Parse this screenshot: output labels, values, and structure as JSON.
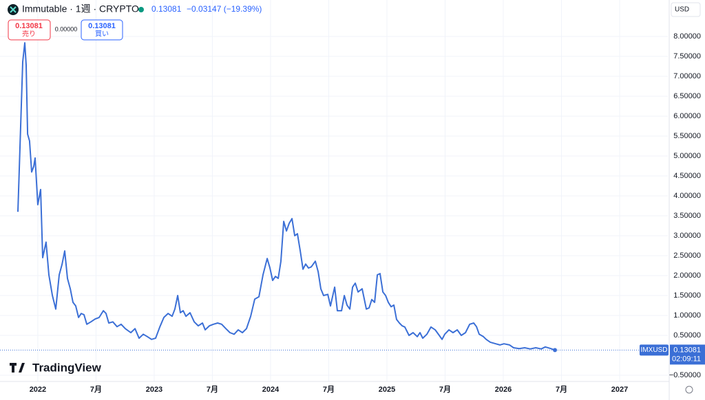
{
  "chart_data": {
    "type": "line",
    "title": "Immutable · 1週 · CRYPTO",
    "last_price": "0.13081",
    "change": "−0.03147 (−19.39%)",
    "sell_price": "0.13081",
    "sell_label": "売り",
    "spread": "0.00000",
    "buy_price": "0.13081",
    "buy_label": "買い",
    "currency": "USD",
    "symbol": "IMXUSD",
    "countdown": "02:09:11",
    "brand": "TradingView",
    "grid": true,
    "series": [
      {
        "name": "IMXUSD",
        "color": "#3b6fd6",
        "x": [
          2021.829,
          2021.87,
          2021.888,
          2021.9,
          2021.912,
          2021.929,
          2021.947,
          2021.965,
          2021.977,
          2022.0,
          2022.024,
          2022.042,
          2022.071,
          2022.095,
          2022.125,
          2022.154,
          2022.184,
          2022.208,
          2022.231,
          2022.255,
          2022.279,
          2022.302,
          2022.326,
          2022.35,
          2022.373,
          2022.397,
          2022.421,
          2022.456,
          2022.492,
          2022.527,
          2022.563,
          2022.586,
          2022.61,
          2022.645,
          2022.681,
          2022.716,
          2022.752,
          2022.799,
          2022.835,
          2022.87,
          2022.906,
          2022.941,
          2022.977,
          2023.012,
          2023.048,
          2023.083,
          2023.119,
          2023.154,
          2023.178,
          2023.202,
          2023.225,
          2023.249,
          2023.273,
          2023.308,
          2023.344,
          2023.379,
          2023.415,
          2023.438,
          2023.474,
          2023.509,
          2023.545,
          2023.58,
          2023.616,
          2023.651,
          2023.687,
          2023.722,
          2023.758,
          2023.793,
          2023.829,
          2023.864,
          2023.9,
          2023.935,
          2023.971,
          2023.995,
          2024.018,
          2024.042,
          2024.066,
          2024.089,
          2024.113,
          2024.137,
          2024.16,
          2024.184,
          2024.208,
          2024.231,
          2024.255,
          2024.279,
          2024.302,
          2024.326,
          2024.35,
          2024.385,
          2024.409,
          2024.432,
          2024.456,
          2024.492,
          2024.515,
          2024.551,
          2024.574,
          2024.61,
          2024.634,
          2024.657,
          2024.681,
          2024.705,
          2024.728,
          2024.752,
          2024.787,
          2024.823,
          2024.847,
          2024.87,
          2024.894,
          2024.918,
          2024.941,
          2024.965,
          2024.989,
          2025.012,
          2025.036,
          2025.06,
          2025.083,
          2025.107,
          2025.131,
          2025.154,
          2025.19,
          2025.225,
          2025.261,
          2025.284,
          2025.308,
          2025.344,
          2025.379,
          2025.415,
          2025.45,
          2025.474,
          2025.497,
          2025.533,
          2025.568,
          2025.604,
          2025.639,
          2025.675,
          2025.711,
          2025.746,
          2025.77,
          2025.793,
          2025.829,
          2025.853,
          2025.888,
          2025.935,
          2025.971,
          2026.006,
          2026.054,
          2026.089,
          2026.137,
          2026.184,
          2026.231,
          2026.279,
          2026.326,
          2026.361,
          2026.409,
          2026.444
        ],
        "values": [
          3.6,
          7.36,
          7.84,
          7.28,
          5.55,
          5.38,
          4.6,
          4.74,
          4.95,
          3.78,
          4.16,
          2.45,
          2.84,
          2.02,
          1.5,
          1.16,
          2.02,
          2.28,
          2.62,
          1.93,
          1.67,
          1.33,
          1.24,
          0.95,
          1.05,
          1.02,
          0.78,
          0.84,
          0.91,
          0.95,
          1.12,
          1.05,
          0.81,
          0.84,
          0.72,
          0.78,
          0.67,
          0.57,
          0.67,
          0.43,
          0.53,
          0.47,
          0.4,
          0.43,
          0.71,
          0.95,
          1.05,
          0.98,
          1.16,
          1.5,
          1.07,
          1.12,
          0.98,
          1.07,
          0.84,
          0.74,
          0.81,
          0.64,
          0.74,
          0.78,
          0.81,
          0.78,
          0.67,
          0.57,
          0.53,
          0.64,
          0.57,
          0.67,
          0.98,
          1.41,
          1.47,
          2.02,
          2.43,
          2.19,
          1.88,
          1.98,
          1.93,
          2.36,
          3.36,
          3.12,
          3.31,
          3.43,
          3.0,
          3.05,
          2.62,
          2.16,
          2.29,
          2.19,
          2.22,
          2.36,
          2.1,
          1.67,
          1.5,
          1.53,
          1.24,
          1.71,
          1.12,
          1.12,
          1.5,
          1.26,
          1.16,
          1.71,
          1.81,
          1.59,
          1.67,
          1.16,
          1.19,
          1.4,
          1.33,
          2.02,
          2.05,
          1.59,
          1.5,
          1.33,
          1.22,
          1.26,
          0.9,
          0.81,
          0.74,
          0.71,
          0.5,
          0.57,
          0.47,
          0.57,
          0.43,
          0.53,
          0.71,
          0.64,
          0.5,
          0.4,
          0.53,
          0.64,
          0.57,
          0.64,
          0.5,
          0.57,
          0.78,
          0.81,
          0.72,
          0.53,
          0.47,
          0.4,
          0.33,
          0.29,
          0.26,
          0.29,
          0.26,
          0.19,
          0.17,
          0.19,
          0.16,
          0.19,
          0.16,
          0.21,
          0.17,
          0.13081
        ]
      }
    ],
    "xlim": [
      2021.675,
      2027.414
    ],
    "xticks": [
      {
        "value": 2022,
        "label": "2022"
      },
      {
        "value": 2022.5,
        "label": "7月"
      },
      {
        "value": 2023,
        "label": "2023"
      },
      {
        "value": 2023.5,
        "label": "7月"
      },
      {
        "value": 2024,
        "label": "2024"
      },
      {
        "value": 2024.5,
        "label": "7月"
      },
      {
        "value": 2025,
        "label": "2025"
      },
      {
        "value": 2025.5,
        "label": "7月"
      },
      {
        "value": 2026,
        "label": "2026"
      },
      {
        "value": 2026.5,
        "label": "7月"
      },
      {
        "value": 2027,
        "label": "2027"
      }
    ],
    "ylim": [
      -0.655,
      8.914
    ],
    "yticks": [
      {
        "value": 8,
        "label": "8.00000"
      },
      {
        "value": 7.5,
        "label": "7.50000"
      },
      {
        "value": 7,
        "label": "7.00000"
      },
      {
        "value": 6.5,
        "label": "6.50000"
      },
      {
        "value": 6,
        "label": "6.00000"
      },
      {
        "value": 5.5,
        "label": "5.50000"
      },
      {
        "value": 5,
        "label": "5.00000"
      },
      {
        "value": 4.5,
        "label": "4.50000"
      },
      {
        "value": 4,
        "label": "4.00000"
      },
      {
        "value": 3.5,
        "label": "3.50000"
      },
      {
        "value": 3,
        "label": "3.00000"
      },
      {
        "value": 2.5,
        "label": "2.50000"
      },
      {
        "value": 2,
        "label": "2.00000"
      },
      {
        "value": 1.5,
        "label": "1.50000"
      },
      {
        "value": 1,
        "label": "1.00000"
      },
      {
        "value": 0.5,
        "label": "0.50000"
      },
      {
        "value": -0.5,
        "label": "−0.50000"
      }
    ]
  }
}
